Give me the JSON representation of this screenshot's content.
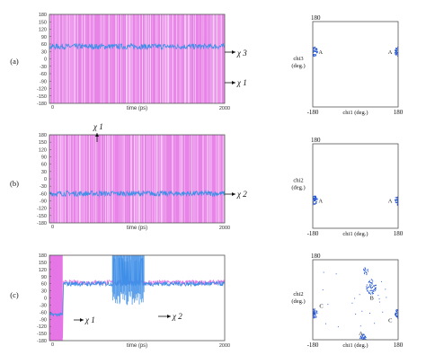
{
  "panels": [
    {
      "letter": "(a)",
      "series_labels": [
        "χ 3",
        "χ 1"
      ],
      "scatter_points": [
        "A",
        "A"
      ],
      "ramach_xlabel": "chi1 (deg.)",
      "ramach_ylabel": "chi3 (deg.)"
    },
    {
      "letter": "(b)",
      "series_labels": [
        "χ 1",
        "χ 2"
      ],
      "scatter_points": [
        "A",
        "A"
      ],
      "ramach_xlabel": "chi1 (deg.)",
      "ramach_ylabel": "chi2 (deg.)"
    },
    {
      "letter": "(c)",
      "series_labels": [
        "χ 1",
        "χ 2"
      ],
      "scatter_points": [
        "A",
        "B",
        "C",
        "C",
        "A"
      ],
      "ramach_xlabel": "chi1 (deg.)",
      "ramach_ylabel": "chi2 (deg.)"
    }
  ],
  "colors": {
    "chi1": "#e675e6",
    "chi_other": "#3f8fe8",
    "scatter": "#1a4fd6",
    "frame": "#555555"
  },
  "chart_data": [
    {
      "type": "line",
      "panel": "(a) time series",
      "xlabel": "time (ps)",
      "xlim": [
        0,
        2000
      ],
      "x_ticks": [
        "0",
        "2000"
      ],
      "ylim": [
        -180,
        180
      ],
      "y_ticks": [
        "180",
        "150",
        "120",
        "90",
        "60",
        "30",
        "0",
        "-30",
        "-60",
        "-90",
        "-120",
        "-150",
        "-180"
      ],
      "series": [
        {
          "name": "χ 1",
          "description": "hops between +180 and -180"
        },
        {
          "name": "χ 3",
          "values_approx": [
            50,
            50,
            50,
            50
          ]
        }
      ]
    },
    {
      "type": "line",
      "panel": "(b) time series",
      "xlabel": "time (ps)",
      "xlim": [
        0,
        2000
      ],
      "x_ticks": [
        "0",
        "2000"
      ],
      "ylim": [
        -180,
        180
      ],
      "y_ticks": [
        "180",
        "150",
        "120",
        "90",
        "60",
        "30",
        "0",
        "-30",
        "-60",
        "-90",
        "-120",
        "-150",
        "-180"
      ],
      "series": [
        {
          "name": "χ 1",
          "description": "hops between +180 and -180"
        },
        {
          "name": "χ 2",
          "values_approx": [
            -60,
            -60,
            -60,
            -60
          ]
        }
      ]
    },
    {
      "type": "line",
      "panel": "(c) time series",
      "xlabel": "time (ps)",
      "xlim": [
        0,
        2000
      ],
      "x_ticks": [
        "0",
        "2000"
      ],
      "ylim": [
        -180,
        180
      ],
      "y_ticks": [
        "180",
        "150",
        "120",
        "90",
        "60",
        "30",
        "0",
        "-30",
        "-60",
        "-90",
        "-120",
        "-150",
        "-180"
      ],
      "series": [
        {
          "name": "χ 1",
          "x": [
            0,
            150,
            160,
            2000
          ],
          "values": [
            -170,
            -170,
            65,
            65
          ]
        },
        {
          "name": "χ 2",
          "x": [
            0,
            150,
            160,
            720,
            1080,
            2000
          ],
          "values": [
            -70,
            -70,
            60,
            60,
            180,
            60
          ]
        }
      ]
    },
    {
      "type": "scatter",
      "panel": "(a) chi1 vs chi3",
      "xlim": [
        -180,
        180
      ],
      "ylim": [
        -180,
        180
      ],
      "x_ticks": [
        "-180",
        "180"
      ],
      "y_ticks": [
        "180"
      ],
      "xlabel": "chi1 (deg.)",
      "ylabel": "chi3 (deg.)",
      "clusters": [
        {
          "label": "A",
          "x": -175,
          "y": 55
        },
        {
          "label": "A",
          "x": 178,
          "y": 55
        }
      ]
    },
    {
      "type": "scatter",
      "panel": "(b) chi1 vs chi2",
      "xlim": [
        -180,
        180
      ],
      "ylim": [
        -180,
        180
      ],
      "x_ticks": [
        "-180",
        "180"
      ],
      "y_ticks": [
        "180"
      ],
      "xlabel": "chi1 (deg.)",
      "ylabel": "chi2 (deg.)",
      "clusters": [
        {
          "label": "A",
          "x": -175,
          "y": -60
        },
        {
          "label": "A",
          "x": 178,
          "y": -60
        }
      ]
    },
    {
      "type": "scatter",
      "panel": "(c) chi1 vs chi2",
      "xlim": [
        -180,
        180
      ],
      "ylim": [
        -180,
        180
      ],
      "x_ticks": [
        "-180",
        "180"
      ],
      "y_ticks": [
        "180"
      ],
      "xlabel": "chi1 (deg.)",
      "ylabel": "chi2 (deg.)",
      "clusters": [
        {
          "label": "B",
          "x": 65,
          "y": 60
        },
        {
          "label": "",
          "x": 40,
          "y": 130
        },
        {
          "label": "C",
          "x": -175,
          "y": -60
        },
        {
          "label": "C",
          "x": 178,
          "y": -60
        },
        {
          "label": "A",
          "x": 30,
          "y": -175
        }
      ]
    }
  ]
}
